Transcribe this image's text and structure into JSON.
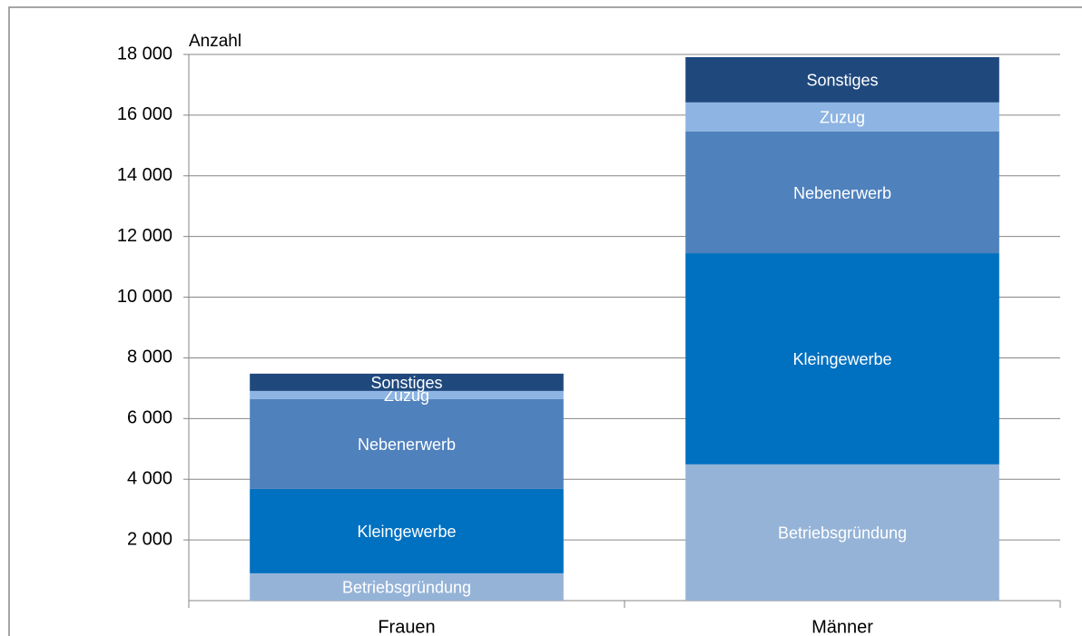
{
  "chart_data": {
    "type": "stacked_bar",
    "y_label": "Anzahl",
    "categories": [
      "Frauen",
      "Männer"
    ],
    "series": [
      {
        "name": "Betriebsgründung",
        "color": "#95b3d7",
        "values": [
          900,
          4490
        ]
      },
      {
        "name": "Kleingewerbe",
        "color": "#0070c0",
        "values": [
          2780,
          6960
        ]
      },
      {
        "name": "Nebenerwerb",
        "color": "#4f81bd",
        "values": [
          2960,
          4010
        ]
      },
      {
        "name": "Zuzug",
        "color": "#8db4e2",
        "values": [
          270,
          960
        ]
      },
      {
        "name": "Sonstiges",
        "color": "#1f497d",
        "values": [
          570,
          1490
        ]
      }
    ],
    "ylim": [
      0,
      18000
    ],
    "yticks": [
      {
        "value": 2000,
        "label": "2 000"
      },
      {
        "value": 4000,
        "label": "4 000"
      },
      {
        "value": 6000,
        "label": "6 000"
      },
      {
        "value": 8000,
        "label": "8 000"
      },
      {
        "value": 10000,
        "label": "10 000"
      },
      {
        "value": 12000,
        "label": "12 000"
      },
      {
        "value": 14000,
        "label": "14 000"
      },
      {
        "value": 16000,
        "label": "16 000"
      },
      {
        "value": 18000,
        "label": "18 000"
      }
    ],
    "grid": true
  }
}
